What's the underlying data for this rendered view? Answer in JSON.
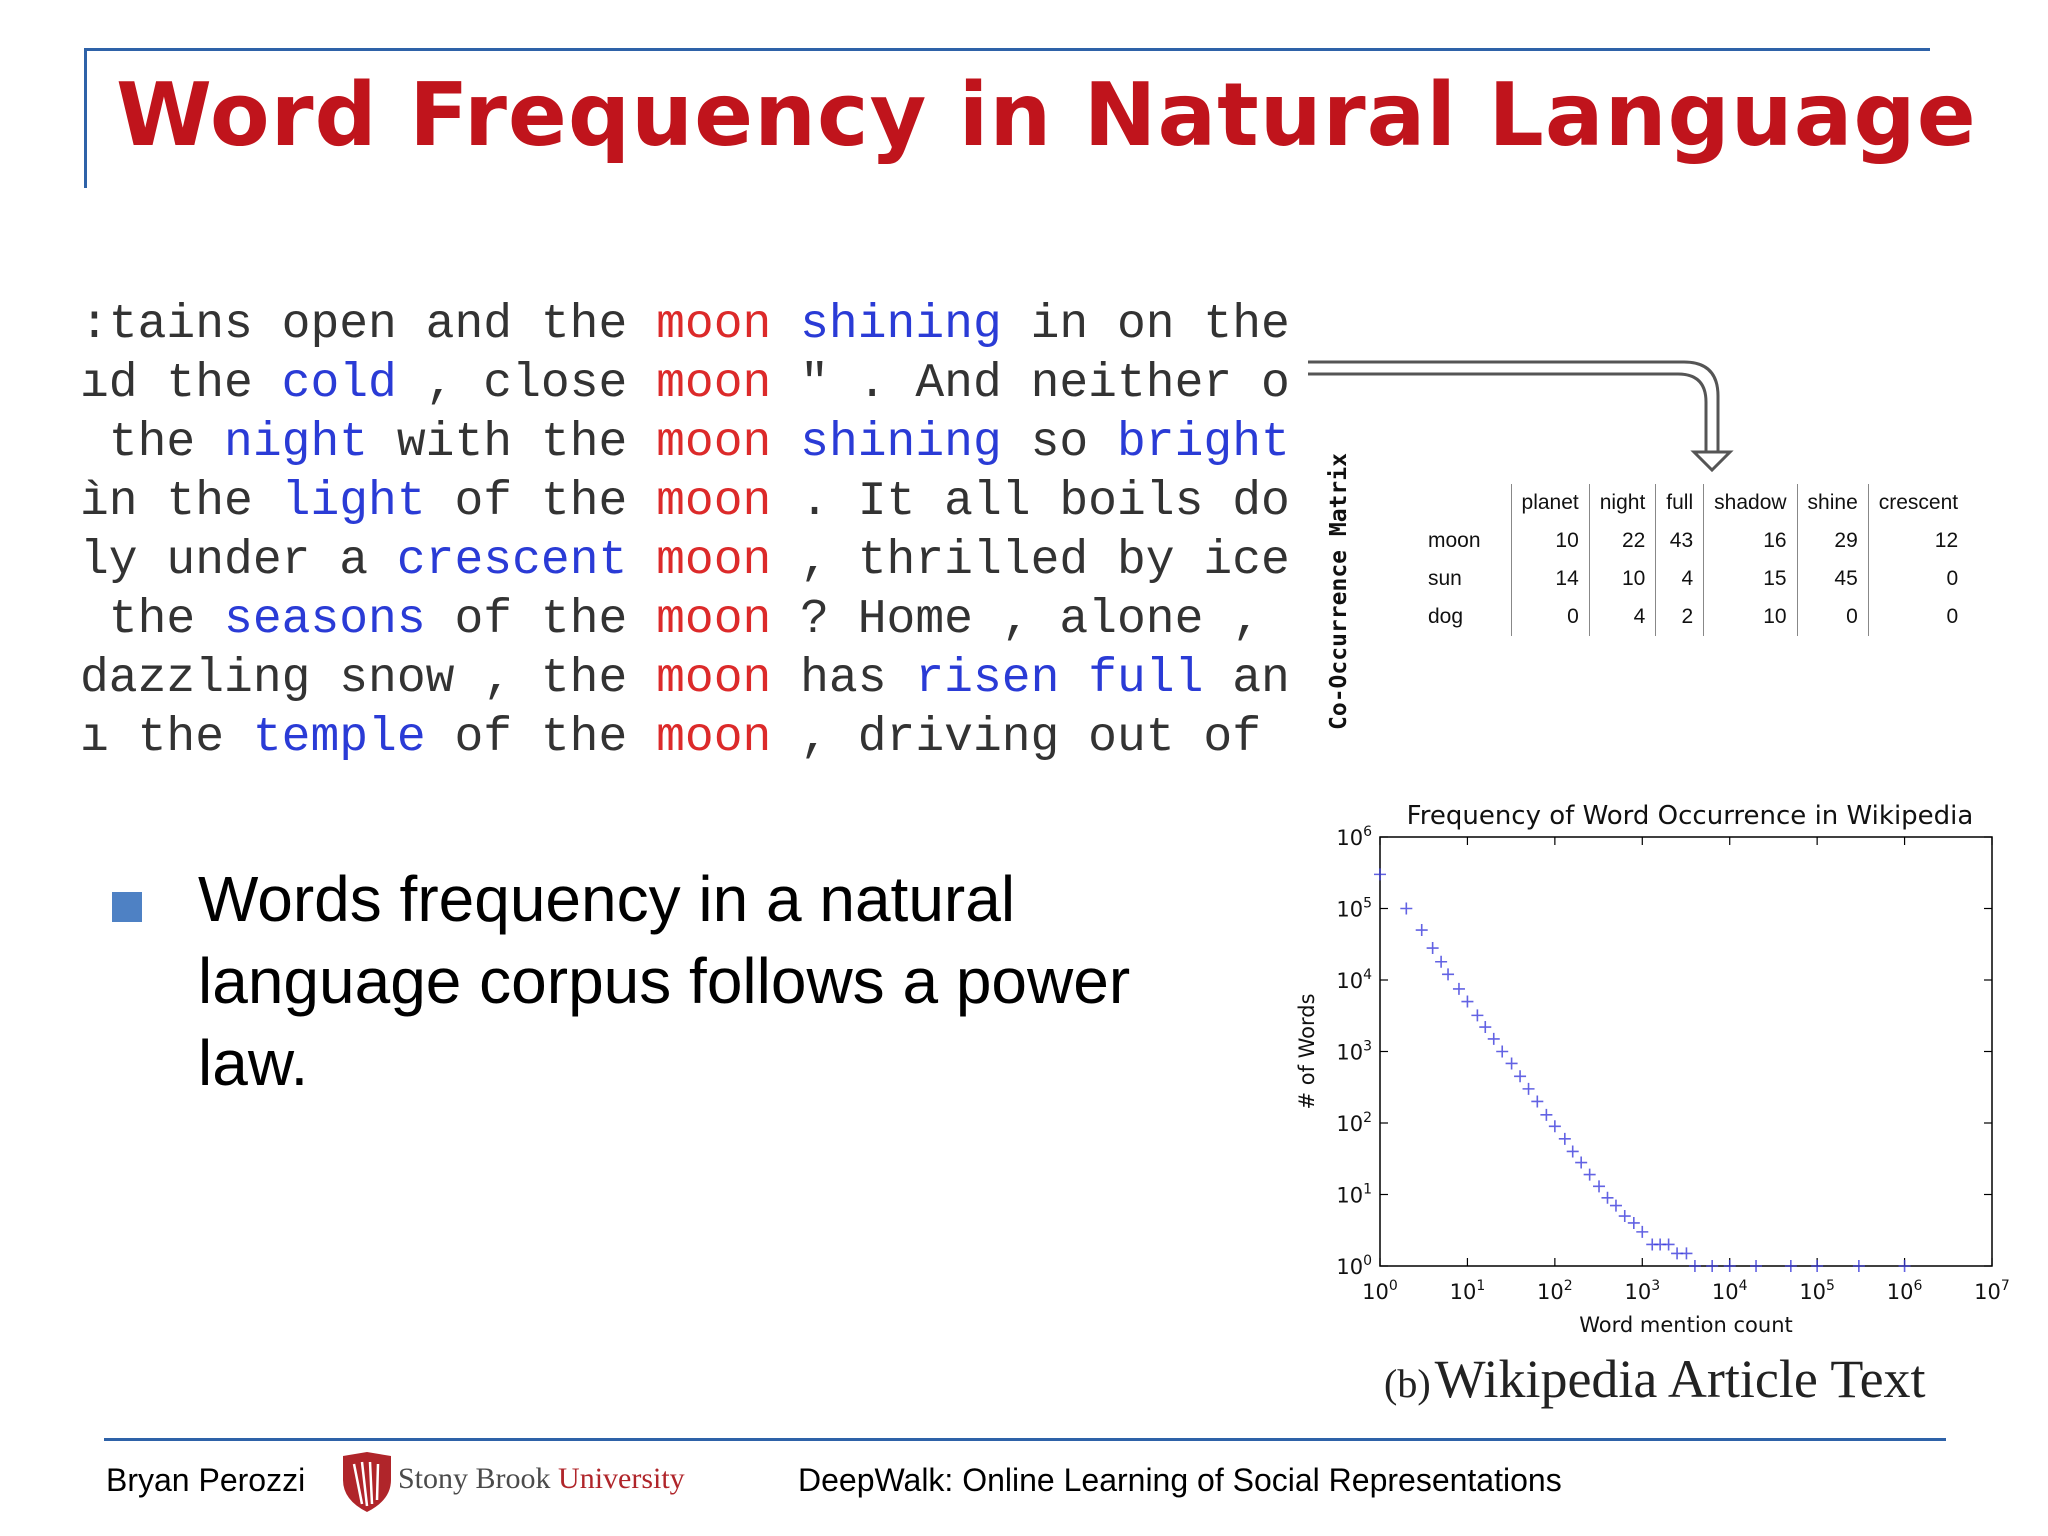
{
  "title": "Word Frequency in Natural Language",
  "concordance": {
    "lines": [
      {
        "tokens": [
          {
            "t": ":tains open and the ",
            "c": "plain"
          },
          {
            "t": "moon",
            "c": "key"
          },
          {
            "t": " ",
            "c": "plain"
          },
          {
            "t": "shining",
            "c": "ctx"
          },
          {
            "t": " in on the",
            "c": "plain"
          }
        ]
      },
      {
        "tokens": [
          {
            "t": "ıd the ",
            "c": "plain"
          },
          {
            "t": "cold",
            "c": "ctx"
          },
          {
            "t": " , close ",
            "c": "plain"
          },
          {
            "t": "moon",
            "c": "key"
          },
          {
            "t": " \" . And neither o",
            "c": "plain"
          }
        ]
      },
      {
        "tokens": [
          {
            "t": " the ",
            "c": "plain"
          },
          {
            "t": "night",
            "c": "ctx"
          },
          {
            "t": " with the ",
            "c": "plain"
          },
          {
            "t": "moon",
            "c": "key"
          },
          {
            "t": " ",
            "c": "plain"
          },
          {
            "t": "shining",
            "c": "ctx"
          },
          {
            "t": " so ",
            "c": "plain"
          },
          {
            "t": "bright",
            "c": "ctx"
          }
        ]
      },
      {
        "tokens": [
          {
            "t": "ìn the ",
            "c": "plain"
          },
          {
            "t": "light",
            "c": "ctx"
          },
          {
            "t": " of the ",
            "c": "plain"
          },
          {
            "t": "moon",
            "c": "key"
          },
          {
            "t": " . It all boils do",
            "c": "plain"
          }
        ]
      },
      {
        "tokens": [
          {
            "t": "ly under a ",
            "c": "plain"
          },
          {
            "t": "crescent",
            "c": "ctx"
          },
          {
            "t": " ",
            "c": "plain"
          },
          {
            "t": "moon",
            "c": "key"
          },
          {
            "t": " , thrilled by ice",
            "c": "plain"
          }
        ]
      },
      {
        "tokens": [
          {
            "t": " the ",
            "c": "plain"
          },
          {
            "t": "seasons",
            "c": "ctx"
          },
          {
            "t": " of the ",
            "c": "plain"
          },
          {
            "t": "moon",
            "c": "key"
          },
          {
            "t": " ? Home , alone ,",
            "c": "plain"
          }
        ]
      },
      {
        "tokens": [
          {
            "t": "dazzling snow , the ",
            "c": "plain"
          },
          {
            "t": "moon",
            "c": "key"
          },
          {
            "t": " has ",
            "c": "plain"
          },
          {
            "t": "risen",
            "c": "ctx"
          },
          {
            "t": " ",
            "c": "plain"
          },
          {
            "t": "full",
            "c": "ctx"
          },
          {
            "t": " an",
            "c": "plain"
          }
        ]
      },
      {
        "tokens": [
          {
            "t": "ı the ",
            "c": "plain"
          },
          {
            "t": "temple",
            "c": "ctx"
          },
          {
            "t": " of the ",
            "c": "plain"
          },
          {
            "t": "moon",
            "c": "key"
          },
          {
            "t": " , driving out of",
            "c": "plain"
          }
        ]
      }
    ]
  },
  "matrix": {
    "label": "Co-Occurrence Matrix",
    "columns": [
      "planet",
      "night",
      "full",
      "shadow",
      "shine",
      "crescent"
    ],
    "rows": [
      {
        "word": "moon",
        "values": [
          "10",
          "22",
          "43",
          "16",
          "29",
          "12"
        ]
      },
      {
        "word": "sun",
        "values": [
          "14",
          "10",
          "4",
          "15",
          "45",
          "0"
        ]
      },
      {
        "word": "dog",
        "values": [
          "0",
          "4",
          "2",
          "10",
          "0",
          "0"
        ]
      }
    ]
  },
  "bullet": {
    "text": "Words frequency in a natural language corpus follows a power law."
  },
  "chart_data": {
    "type": "scatter",
    "title": "Frequency of Word Occurrence in Wikipedia",
    "xlabel": "Word mention count",
    "ylabel": "# of Words",
    "xscale": "log",
    "yscale": "log",
    "xlim": [
      1,
      10000000
    ],
    "ylim": [
      1,
      1000000
    ],
    "x_ticks": [
      "10^0",
      "10^1",
      "10^2",
      "10^3",
      "10^4",
      "10^5",
      "10^6",
      "10^7"
    ],
    "y_ticks": [
      "10^0",
      "10^1",
      "10^2",
      "10^3",
      "10^4",
      "10^5",
      "10^6"
    ],
    "grid": false,
    "marker": "+",
    "color": "#3b3bdc",
    "series": [
      {
        "points": [
          [
            1,
            300000
          ],
          [
            2,
            100000
          ],
          [
            3,
            50000
          ],
          [
            4,
            28000
          ],
          [
            5,
            18000
          ],
          [
            6,
            12000
          ],
          [
            8,
            7500
          ],
          [
            10,
            5000
          ],
          [
            13,
            3200
          ],
          [
            16,
            2200
          ],
          [
            20,
            1500
          ],
          [
            25,
            1000
          ],
          [
            32,
            680
          ],
          [
            40,
            450
          ],
          [
            50,
            300
          ],
          [
            63,
            200
          ],
          [
            80,
            130
          ],
          [
            100,
            90
          ],
          [
            130,
            60
          ],
          [
            160,
            40
          ],
          [
            200,
            28
          ],
          [
            250,
            19
          ],
          [
            320,
            13
          ],
          [
            400,
            9
          ],
          [
            500,
            7
          ],
          [
            630,
            5
          ],
          [
            800,
            4
          ],
          [
            1000,
            3
          ],
          [
            1300,
            2
          ],
          [
            1600,
            2
          ],
          [
            2000,
            2
          ],
          [
            2500,
            1.5
          ],
          [
            3200,
            1.5
          ],
          [
            4000,
            1
          ],
          [
            6300,
            1
          ],
          [
            10000,
            1
          ],
          [
            20000,
            1
          ],
          [
            50000,
            1
          ],
          [
            100000,
            1
          ],
          [
            300000,
            1
          ],
          [
            1000000,
            1
          ]
        ]
      }
    ]
  },
  "caption": {
    "prefix": "(b)",
    "text": "Wikipedia Article Text"
  },
  "footer": {
    "author": "Bryan Perozzi",
    "logo_word1": "Stony Brook",
    "logo_word2": "University",
    "talk_title": "DeepWalk: Online Learning of Social Representations"
  },
  "colors": {
    "title": "#c0141c",
    "rule": "#2e62a8",
    "key_word": "#dc2a2a",
    "context_word": "#2a3bd6",
    "bullet": "#4e81c4"
  }
}
